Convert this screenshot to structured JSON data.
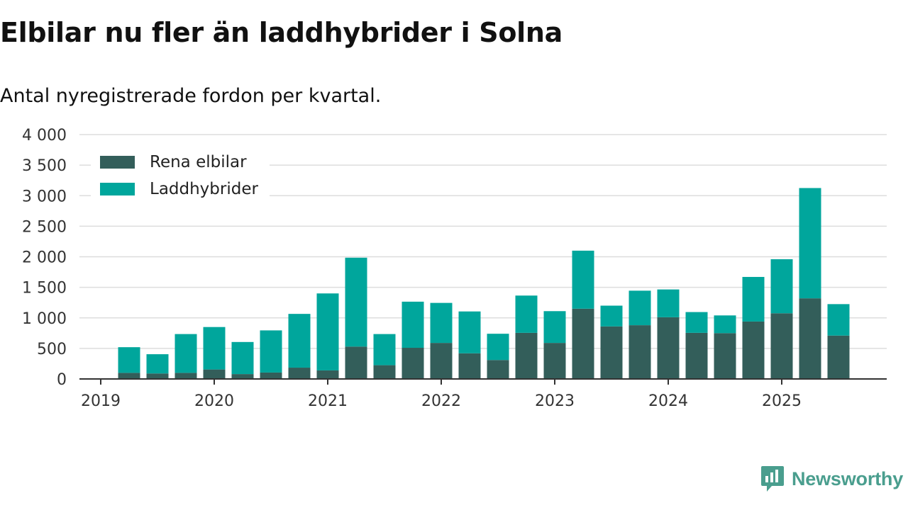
{
  "title": "Elbilar nu fler än laddhybrider i Solna",
  "subtitle": "Antal nyregistrerade fordon per kvartal.",
  "brand": {
    "name": "Newsworthy",
    "icon": "newsworthy-logo-icon",
    "color": "#4a9e8e"
  },
  "colors": {
    "elbilar": "#335e5a",
    "laddhybrider": "#00a69c",
    "grid": "#dddddd",
    "axis": "#333333"
  },
  "chart_data": {
    "type": "bar",
    "stacked": true,
    "title": "Elbilar nu fler än laddhybrider i Solna",
    "subtitle": "Antal nyregistrerade fordon per kvartal.",
    "xlabel": "",
    "ylabel": "",
    "ylim": [
      0,
      4000
    ],
    "yticks": [
      0,
      500,
      1000,
      1500,
      2000,
      2500,
      3000,
      3500,
      4000
    ],
    "ytick_labels": [
      "0",
      "500",
      "1 000",
      "1 500",
      "2 000",
      "2 500",
      "3 000",
      "3 500",
      "4 000"
    ],
    "xticks": [
      "2019",
      "2020",
      "2021",
      "2022",
      "2023",
      "2024",
      "2025"
    ],
    "legend_position": "top-left",
    "grid": true,
    "categories": [
      "2019 Q2",
      "2019 Q3",
      "2019 Q4",
      "2020 Q1",
      "2020 Q2",
      "2020 Q3",
      "2020 Q4",
      "2021 Q1",
      "2021 Q2",
      "2021 Q3",
      "2021 Q4",
      "2022 Q1",
      "2022 Q2",
      "2022 Q3",
      "2022 Q4",
      "2023 Q1",
      "2023 Q2",
      "2023 Q3",
      "2023 Q4",
      "2024 Q1",
      "2024 Q2",
      "2024 Q3",
      "2024 Q4",
      "2025 Q1",
      "2025 Q2",
      "2025 Q3"
    ],
    "series": [
      {
        "name": "Rena elbilar",
        "values": [
          100,
          90,
          100,
          155,
          80,
          105,
          185,
          140,
          530,
          225,
          510,
          590,
          420,
          310,
          755,
          590,
          1150,
          860,
          880,
          1010,
          755,
          750,
          940,
          1075,
          1320,
          710
        ]
      },
      {
        "name": "Laddhybrider",
        "values": [
          420,
          315,
          635,
          695,
          525,
          690,
          880,
          1260,
          1455,
          510,
          755,
          655,
          685,
          430,
          610,
          520,
          950,
          340,
          565,
          455,
          340,
          290,
          730,
          885,
          1805,
          515
        ]
      }
    ]
  }
}
